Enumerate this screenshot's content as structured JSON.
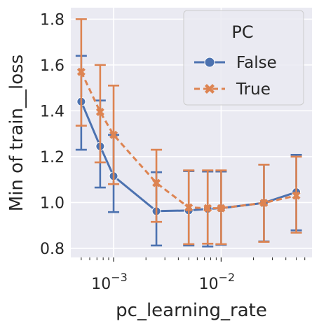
{
  "chart_data": {
    "type": "line",
    "xlabel": "pc_learning_rate",
    "ylabel": "Min of train__loss",
    "xscale": "log",
    "xlim": [
      0.0004,
      0.07
    ],
    "ylim": [
      0.76,
      1.85
    ],
    "yticks": [
      "0.8",
      "1.0",
      "1.2",
      "1.4",
      "1.6",
      "1.8"
    ],
    "xticks": [
      {
        "value": 0.001,
        "base": "10",
        "exp": "−3"
      },
      {
        "value": 0.01,
        "base": "10",
        "exp": "−2"
      }
    ],
    "grid": true,
    "legend": {
      "title": "PC",
      "placement": "top-right"
    },
    "series": [
      {
        "name": "False",
        "color": "#4c72b0",
        "marker": "circle",
        "linestyle": "solid",
        "points": [
          {
            "x": 0.0005,
            "y": 1.44,
            "lo": 1.23,
            "hi": 1.64
          },
          {
            "x": 0.00075,
            "y": 1.245,
            "lo": 1.065,
            "hi": 1.445
          },
          {
            "x": 0.001,
            "y": 1.115,
            "lo": 0.958,
            "hi": 1.295
          },
          {
            "x": 0.0025,
            "y": 0.962,
            "lo": 0.812,
            "hi": 1.132
          },
          {
            "x": 0.005,
            "y": 0.965,
            "lo": 0.812,
            "hi": 1.137
          },
          {
            "x": 0.0075,
            "y": 0.972,
            "lo": 0.808,
            "hi": 1.135
          },
          {
            "x": 0.01,
            "y": 0.975,
            "lo": 0.815,
            "hi": 1.135
          },
          {
            "x": 0.025,
            "y": 0.998,
            "lo": 0.83,
            "hi": 1.165
          },
          {
            "x": 0.05,
            "y": 1.045,
            "lo": 0.878,
            "hi": 1.208
          }
        ]
      },
      {
        "name": "True",
        "color": "#dd8452",
        "marker": "x",
        "linestyle": "dashed",
        "points": [
          {
            "x": 0.0005,
            "y": 1.57,
            "lo": 1.335,
            "hi": 1.8
          },
          {
            "x": 0.00075,
            "y": 1.395,
            "lo": 1.175,
            "hi": 1.6
          },
          {
            "x": 0.001,
            "y": 1.295,
            "lo": 1.08,
            "hi": 1.51
          },
          {
            "x": 0.0025,
            "y": 1.085,
            "lo": 0.915,
            "hi": 1.23
          },
          {
            "x": 0.005,
            "y": 0.978,
            "lo": 0.818,
            "hi": 1.14
          },
          {
            "x": 0.0075,
            "y": 0.975,
            "lo": 0.82,
            "hi": 1.14
          },
          {
            "x": 0.01,
            "y": 0.975,
            "lo": 0.818,
            "hi": 1.14
          },
          {
            "x": 0.025,
            "y": 0.998,
            "lo": 0.828,
            "hi": 1.165
          },
          {
            "x": 0.05,
            "y": 1.03,
            "lo": 0.868,
            "hi": 1.2
          }
        ]
      }
    ]
  }
}
